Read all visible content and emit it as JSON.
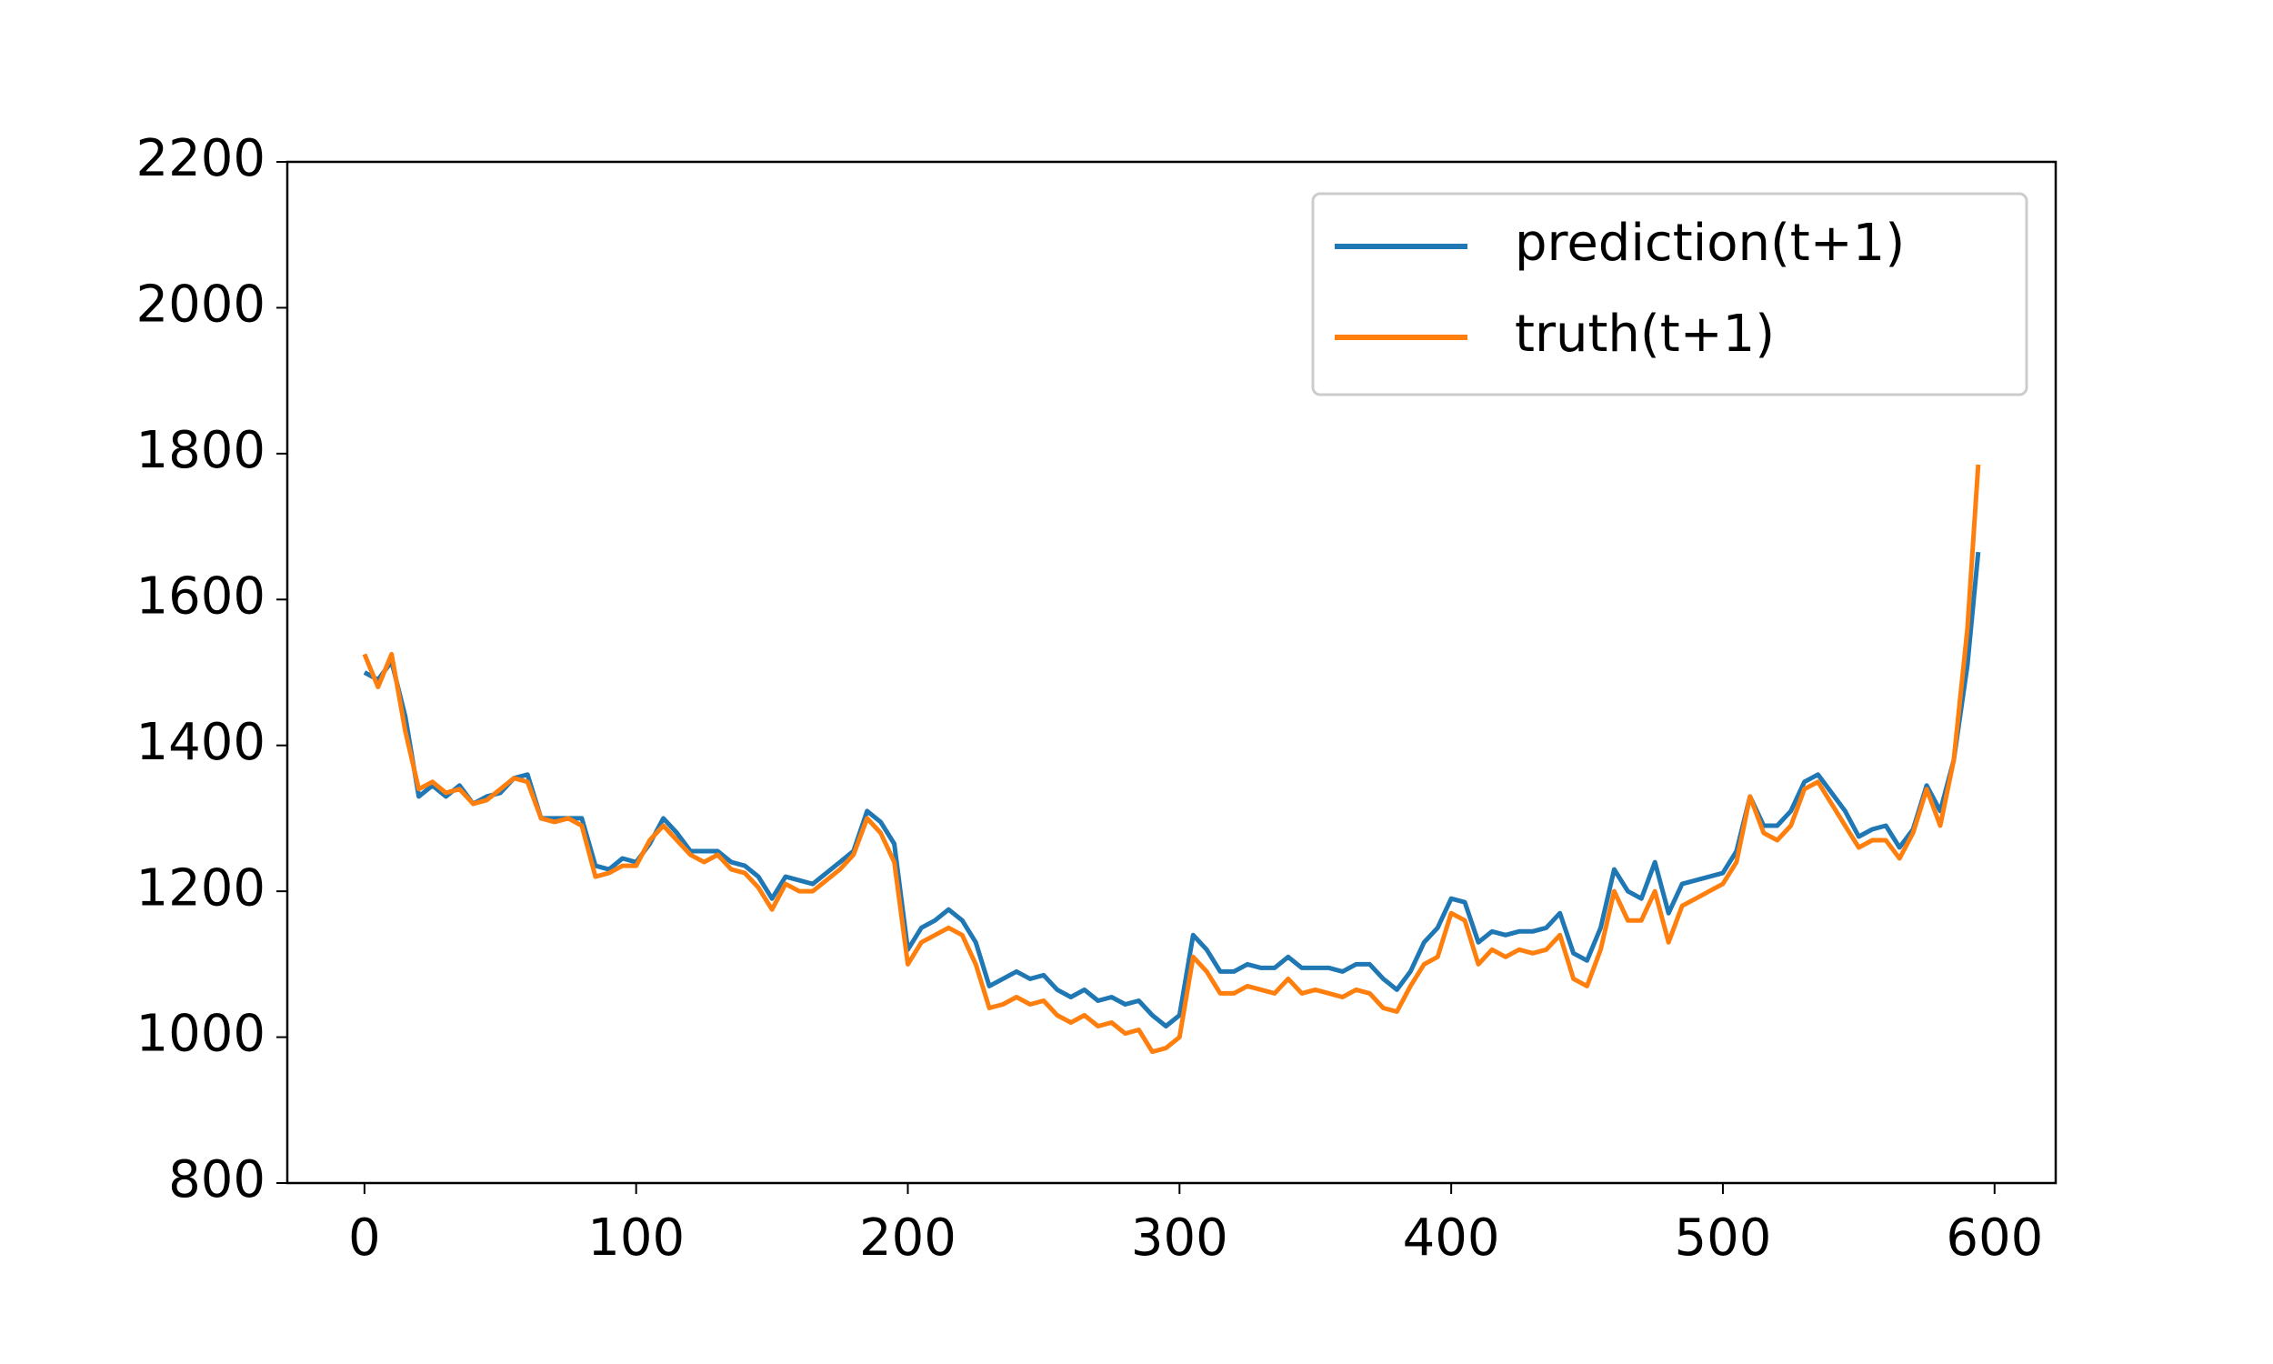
{
  "chart_data": {
    "type": "line",
    "x": [
      0,
      5,
      10,
      15,
      20,
      25,
      30,
      35,
      40,
      45,
      50,
      55,
      60,
      65,
      70,
      75,
      80,
      85,
      90,
      95,
      100,
      105,
      110,
      115,
      120,
      125,
      130,
      135,
      140,
      145,
      150,
      155,
      160,
      165,
      170,
      175,
      180,
      185,
      190,
      195,
      200,
      205,
      210,
      215,
      220,
      225,
      230,
      235,
      240,
      245,
      250,
      255,
      260,
      265,
      270,
      275,
      280,
      285,
      290,
      295,
      300,
      305,
      310,
      315,
      320,
      325,
      330,
      335,
      340,
      345,
      350,
      355,
      360,
      365,
      370,
      375,
      380,
      385,
      390,
      395,
      400,
      405,
      410,
      415,
      420,
      425,
      430,
      435,
      440,
      445,
      450,
      455,
      460,
      465,
      470,
      475,
      480,
      485,
      490,
      495,
      500,
      505,
      510,
      515,
      520,
      525,
      530,
      535,
      540,
      545,
      550,
      555,
      560,
      565,
      570,
      575,
      580,
      585,
      590,
      594
    ],
    "series": [
      {
        "name": "prediction(t+1)",
        "color": "#1f77b4",
        "values": [
          1500,
          1490,
          1515,
          1440,
          1330,
          1345,
          1330,
          1345,
          1320,
          1330,
          1335,
          1355,
          1360,
          1300,
          1300,
          1300,
          1300,
          1235,
          1230,
          1245,
          1240,
          1265,
          1300,
          1280,
          1255,
          1255,
          1255,
          1240,
          1235,
          1220,
          1190,
          1220,
          1215,
          1210,
          1225,
          1240,
          1255,
          1310,
          1295,
          1265,
          1120,
          1150,
          1160,
          1175,
          1160,
          1130,
          1070,
          1080,
          1090,
          1080,
          1085,
          1065,
          1055,
          1065,
          1050,
          1055,
          1045,
          1050,
          1030,
          1015,
          1030,
          1140,
          1120,
          1090,
          1090,
          1100,
          1095,
          1095,
          1110,
          1095,
          1095,
          1095,
          1090,
          1100,
          1100,
          1080,
          1065,
          1090,
          1130,
          1150,
          1190,
          1185,
          1130,
          1145,
          1140,
          1145,
          1145,
          1150,
          1170,
          1115,
          1105,
          1150,
          1230,
          1200,
          1190,
          1240,
          1170,
          1210,
          1215,
          1220,
          1225,
          1255,
          1330,
          1290,
          1290,
          1310,
          1350,
          1360,
          1335,
          1310,
          1275,
          1285,
          1290,
          1260,
          1285,
          1345,
          1310,
          1380,
          1510,
          1665
        ]
      },
      {
        "name": "truth(t+1)",
        "color": "#ff7f0e",
        "values": [
          1525,
          1480,
          1525,
          1420,
          1340,
          1350,
          1335,
          1340,
          1320,
          1325,
          1340,
          1355,
          1350,
          1300,
          1295,
          1300,
          1290,
          1220,
          1225,
          1235,
          1235,
          1270,
          1290,
          1270,
          1250,
          1240,
          1250,
          1230,
          1225,
          1205,
          1175,
          1210,
          1200,
          1200,
          1215,
          1230,
          1250,
          1300,
          1280,
          1240,
          1100,
          1130,
          1140,
          1150,
          1140,
          1100,
          1040,
          1045,
          1055,
          1045,
          1050,
          1030,
          1020,
          1030,
          1015,
          1020,
          1005,
          1010,
          980,
          985,
          1000,
          1110,
          1090,
          1060,
          1060,
          1070,
          1065,
          1060,
          1080,
          1060,
          1065,
          1060,
          1055,
          1065,
          1060,
          1040,
          1035,
          1070,
          1100,
          1110,
          1170,
          1160,
          1100,
          1120,
          1110,
          1120,
          1115,
          1120,
          1140,
          1080,
          1070,
          1120,
          1200,
          1160,
          1160,
          1200,
          1130,
          1180,
          1190,
          1200,
          1210,
          1240,
          1330,
          1280,
          1270,
          1290,
          1340,
          1350,
          1320,
          1290,
          1260,
          1270,
          1270,
          1245,
          1280,
          1340,
          1290,
          1380,
          1560,
          1785
        ]
      }
    ],
    "xlim": [
      -28.4,
      622.5
    ],
    "xticks": [
      0,
      100,
      200,
      300,
      400,
      500,
      600
    ],
    "ylim": [
      800,
      2200
    ],
    "yticks": [
      800,
      1000,
      1200,
      1400,
      1600,
      1800,
      2000,
      2200
    ],
    "grid": false,
    "legend": "upper right"
  }
}
